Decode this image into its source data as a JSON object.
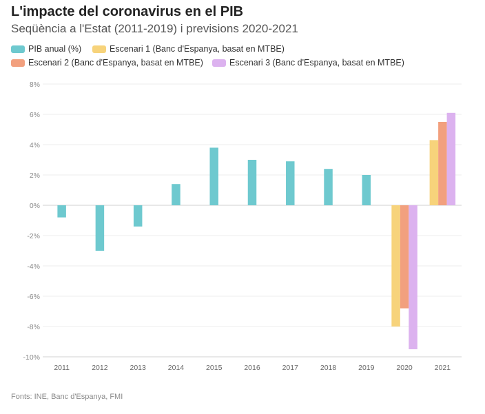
{
  "title": "L'impacte del coronavirus en el PIB",
  "subtitle": "Seqüència a l'Estat (2011-2019) i previsions 2020-2021",
  "source": "Fonts: INE, Banc d'Espanya, FMI",
  "legend": [
    {
      "label": "PIB anual (%)",
      "color": "#6ec9cf"
    },
    {
      "label": "Escenari 1 (Banc d'Espanya, basat en MTBE)",
      "color": "#f7d37b"
    },
    {
      "label": "Escenari 2 (Banc d'Espanya, basat en MTBE)",
      "color": "#f2a07e"
    },
    {
      "label": "Escenari 3 (Banc d'Espanya, basat en MTBE)",
      "color": "#dcb2ef"
    }
  ],
  "chart_data": {
    "type": "bar",
    "categories": [
      "2011",
      "2012",
      "2013",
      "2014",
      "2015",
      "2016",
      "2017",
      "2018",
      "2019",
      "2020",
      "2021"
    ],
    "series": [
      {
        "name": "PIB anual (%)",
        "color": "#6ec9cf",
        "values": [
          -0.8,
          -3.0,
          -1.4,
          1.4,
          3.8,
          3.0,
          2.9,
          2.4,
          2.0,
          null,
          null
        ]
      },
      {
        "name": "Escenari 1 (Banc d'Espanya, basat en MTBE)",
        "color": "#f7d37b",
        "values": [
          null,
          null,
          null,
          null,
          null,
          null,
          null,
          null,
          null,
          -8.0,
          4.3
        ]
      },
      {
        "name": "Escenari 2 (Banc d'Espanya, basat en MTBE)",
        "color": "#f2a07e",
        "values": [
          null,
          null,
          null,
          null,
          null,
          null,
          null,
          null,
          null,
          -6.8,
          5.5
        ]
      },
      {
        "name": "Escenari 3 (Banc d'Espanya, basat en MTBE)",
        "color": "#dcb2ef",
        "values": [
          null,
          null,
          null,
          null,
          null,
          null,
          null,
          null,
          null,
          -9.5,
          6.1
        ]
      }
    ],
    "yticks": [
      "8%",
      "6%",
      "4%",
      "2%",
      "0%",
      "-2%",
      "-4%",
      "-6%",
      "-8%",
      "-10%"
    ],
    "ylim": [
      -10,
      8
    ],
    "grid": true,
    "legend_position": "top"
  }
}
